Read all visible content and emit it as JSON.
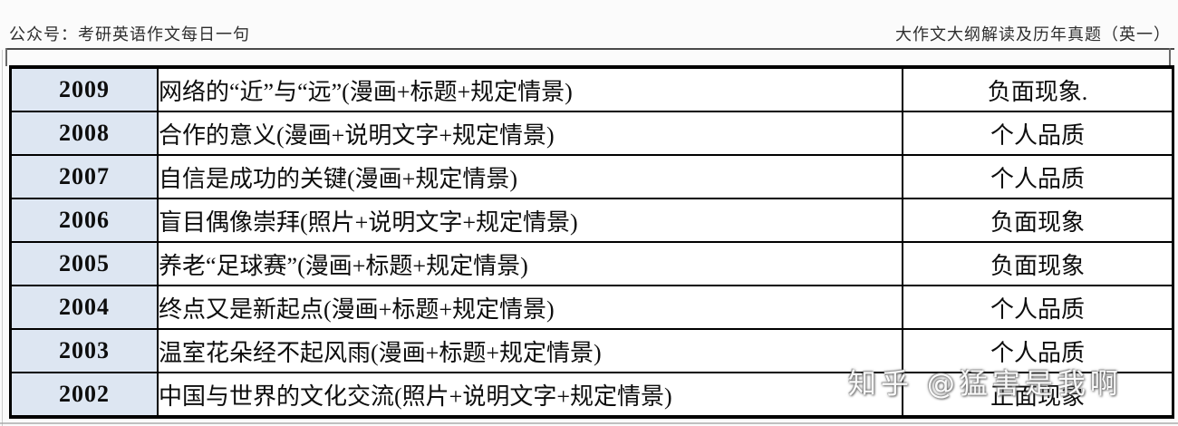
{
  "header": {
    "left": "公众号：考研英语作文每日一句",
    "right": "大作文大纲解读及历年真题（英一）"
  },
  "table": {
    "rows": [
      {
        "year": "2009",
        "topic": "网络的“近”与“远”(漫画+标题+规定情景)",
        "category": "负面现象."
      },
      {
        "year": "2008",
        "topic": "合作的意义(漫画+说明文字+规定情景)",
        "category": "个人品质"
      },
      {
        "year": "2007",
        "topic": "自信是成功的关键(漫画+规定情景)",
        "category": "个人品质"
      },
      {
        "year": "2006",
        "topic": "盲目偶像崇拜(照片+说明文字+规定情景)",
        "category": "负面现象"
      },
      {
        "year": "2005",
        "topic": "养老“足球赛”(漫画+标题+规定情景)",
        "category": "负面现象"
      },
      {
        "year": "2004",
        "topic": "终点又是新起点(漫画+标题+规定情景)",
        "category": "个人品质"
      },
      {
        "year": "2003",
        "topic": "温室花朵经不起风雨(漫画+标题+规定情景)",
        "category": "个人品质"
      },
      {
        "year": "2002",
        "topic": "中国与世界的文化交流(照片+说明文字+规定情景)",
        "category": "正面现象"
      }
    ]
  },
  "watermark": {
    "text": "知乎 @猛害是我啊"
  },
  "colors": {
    "year_cell_bg": "#dde6f2",
    "table_border": "#000000",
    "header_text": "#2e2e2e"
  }
}
